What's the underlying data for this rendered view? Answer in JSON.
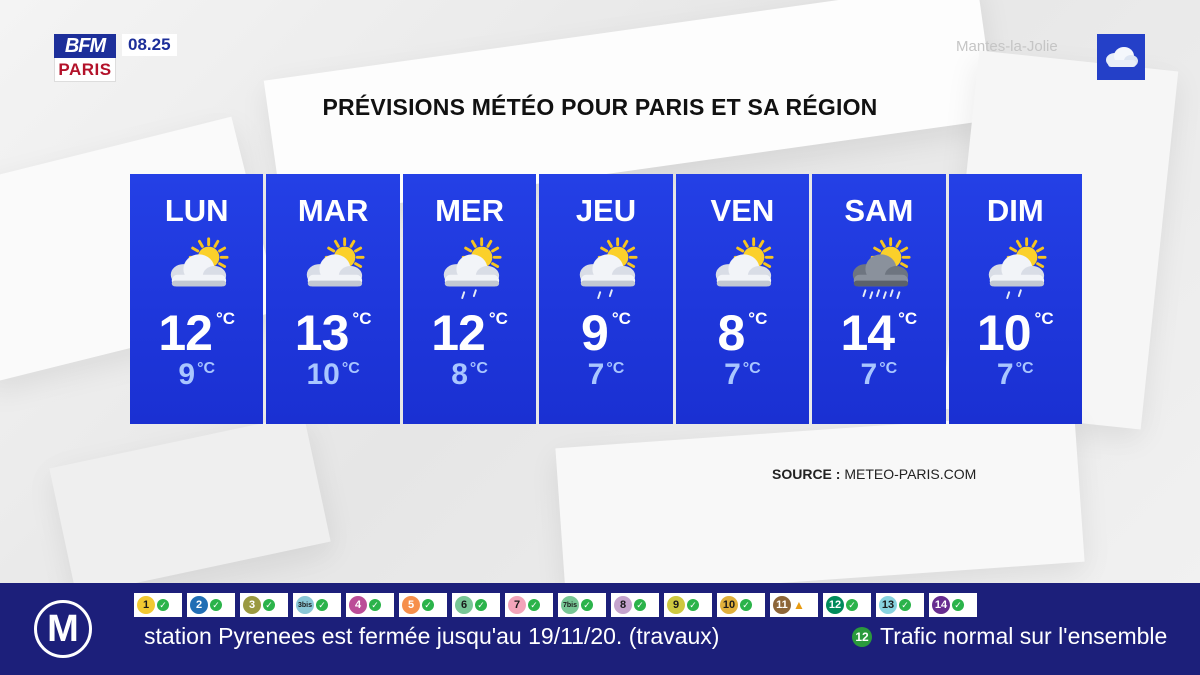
{
  "header": {
    "logo_top": "BFM",
    "logo_bottom": "PARIS",
    "clock": "08.25",
    "city": "Mantes-la-Jolie"
  },
  "title": "PRÉVISIONS MÉTÉO POUR PARIS ET SA RÉGION",
  "unit": "°C",
  "forecast": [
    {
      "day": "LUN",
      "icon": "sun-behind-cloud",
      "hi": "12",
      "lo": "9"
    },
    {
      "day": "MAR",
      "icon": "sun-behind-cloud",
      "hi": "13",
      "lo": "10"
    },
    {
      "day": "MER",
      "icon": "sun-cloud-rain",
      "hi": "12",
      "lo": "8"
    },
    {
      "day": "JEU",
      "icon": "sun-cloud-rain",
      "hi": "9",
      "lo": "7"
    },
    {
      "day": "VEN",
      "icon": "sun-behind-cloud",
      "hi": "8",
      "lo": "7"
    },
    {
      "day": "SAM",
      "icon": "sun-dark-cloud-heavy-rain",
      "hi": "14",
      "lo": "7"
    },
    {
      "day": "DIM",
      "icon": "sun-cloud-rain",
      "hi": "10",
      "lo": "7"
    }
  ],
  "source": {
    "label": "SOURCE :",
    "value": "METEO-PARIS.COM"
  },
  "ticker": {
    "logo": "M",
    "lines": [
      {
        "num": "1",
        "color": "#f2c931",
        "status": "ok"
      },
      {
        "num": "2",
        "color": "#216eb4",
        "status": "ok"
      },
      {
        "num": "3",
        "color": "#9a9940",
        "status": "ok"
      },
      {
        "num": "3bis",
        "color": "#89c7d6",
        "status": "ok"
      },
      {
        "num": "4",
        "color": "#bb4d98",
        "status": "ok"
      },
      {
        "num": "5",
        "color": "#f68f4b",
        "status": "ok"
      },
      {
        "num": "6",
        "color": "#77c695",
        "status": "ok"
      },
      {
        "num": "7",
        "color": "#f3a4ba",
        "status": "ok"
      },
      {
        "num": "7bis",
        "color": "#77c695",
        "status": "ok"
      },
      {
        "num": "8",
        "color": "#c5a3cd",
        "status": "ok"
      },
      {
        "num": "9",
        "color": "#cdc83f",
        "status": "ok"
      },
      {
        "num": "10",
        "color": "#e0b03b",
        "status": "ok"
      },
      {
        "num": "11",
        "color": "#8d6538",
        "status": "warning"
      },
      {
        "num": "12",
        "color": "#008b5b",
        "status": "ok"
      },
      {
        "num": "13",
        "color": "#87d3df",
        "status": "ok"
      },
      {
        "num": "14",
        "color": "#662c90",
        "status": "ok"
      }
    ],
    "message": "station Pyrenees est fermée jusqu'au 19/11/20. (travaux)",
    "message2_line": "12",
    "message2": "Trafic normal sur l'ensemble"
  }
}
